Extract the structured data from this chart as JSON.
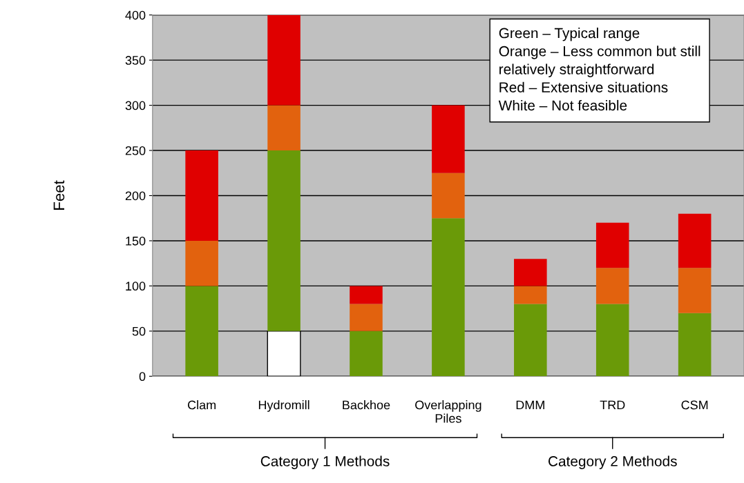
{
  "chart_data": {
    "type": "bar",
    "stacked": true,
    "ylabel": "Feet",
    "categories": [
      "Clam",
      "Hydromill",
      "Backhoe",
      "Overlapping\nPiles",
      "DMM",
      "TRD",
      "CSM"
    ],
    "series": [
      {
        "color": "#ffffff",
        "values": [
          0,
          50,
          0,
          0,
          0,
          0,
          0
        ]
      },
      {
        "color": "#6a9a08",
        "values": [
          100,
          200,
          50,
          175,
          80,
          80,
          70
        ]
      },
      {
        "color": "#e2620e",
        "values": [
          50,
          50,
          30,
          50,
          20,
          40,
          50
        ]
      },
      {
        "color": "#e00000",
        "values": [
          100,
          100,
          20,
          75,
          30,
          50,
          60
        ]
      }
    ],
    "ylim": [
      0,
      400
    ],
    "yticks": [
      0,
      50,
      100,
      150,
      200,
      250,
      300,
      350,
      400
    ],
    "grid": "y",
    "legend": false,
    "annotations": [
      "Green – Typical range\nOrange – Less common but still\nrelatively straightforward\nRed – Extensive situations\nWhite – Not feasible",
      "Category 1 Methods",
      "Category 2 Methods"
    ]
  }
}
